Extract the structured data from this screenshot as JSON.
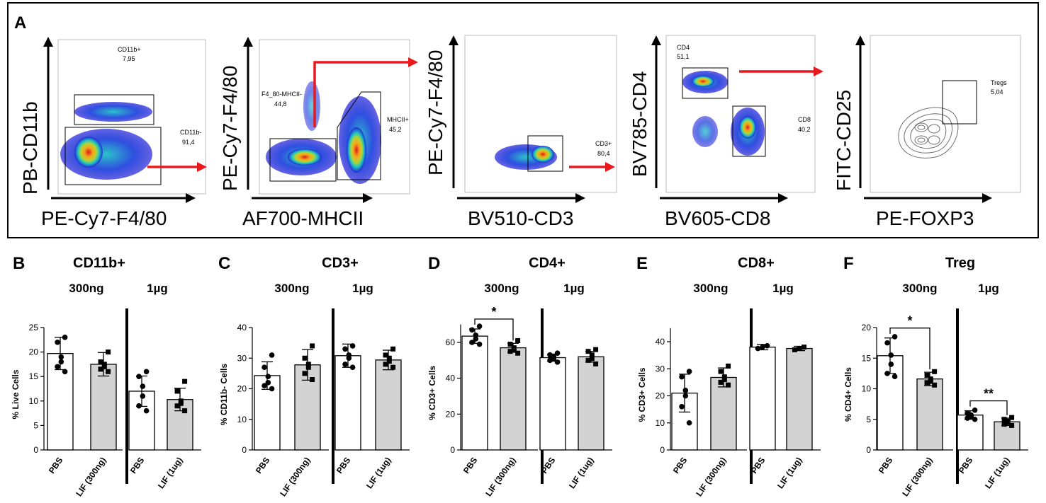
{
  "colors": {
    "arrow_red": "#e8191c",
    "bar_pbs": "#ffffff",
    "bar_lif": "#d3d3d3",
    "black": "#000000",
    "contour": "#6d6d6d"
  },
  "panel_a": {
    "label": "A",
    "plots": [
      {
        "y_label": "PB-CD11b",
        "x_label": "PE-Cy7-F4/80",
        "gates": [
          {
            "name": "CD11b+",
            "value": "7,95"
          },
          {
            "name": "CD11b-",
            "value": "91,4"
          }
        ]
      },
      {
        "y_label": "PE-Cy7-F4/80",
        "x_label": "AF700-MHCII",
        "gates": [
          {
            "name": "F4_80-MHCII-",
            "value": "44,8"
          },
          {
            "name": "MHCII+",
            "value": "45,2"
          }
        ]
      },
      {
        "y_label": "PE-Cy7-F4/80",
        "x_label": "BV510-CD3",
        "gates": [
          {
            "name": "CD3+",
            "value": "80,4"
          }
        ]
      },
      {
        "y_label": "BV785-CD4",
        "x_label": "BV605-CD8",
        "gates": [
          {
            "name": "CD4",
            "value": "51,1"
          },
          {
            "name": "CD8",
            "value": "40,2"
          }
        ]
      },
      {
        "y_label": "FITC-CD25",
        "x_label": "PE-FOXP3",
        "gates": [
          {
            "name": "Tregs",
            "value": "5,04"
          }
        ]
      }
    ]
  },
  "chart_data": [
    {
      "type": "bar",
      "panel": "B",
      "title": "CD11b+",
      "dose_labels": [
        "300ng",
        "1µg"
      ],
      "ylabel": "% Live Cells",
      "ylim": [
        0,
        25
      ],
      "yticks": [
        0,
        5,
        10,
        15,
        20,
        25
      ],
      "categories": [
        "PBS",
        "LIF (300ng)",
        "PBS",
        "LIF (1ug)"
      ],
      "values": [
        19.7,
        17.5,
        12.0,
        10.3
      ],
      "sd": [
        3.3,
        2.4,
        3.1,
        2.3
      ],
      "points": [
        [
          23,
          22,
          19,
          18,
          17,
          16
        ],
        [
          20,
          18,
          17.5,
          17,
          16.5,
          16
        ],
        [
          16,
          15,
          13,
          11,
          9,
          8
        ],
        [
          14,
          12,
          10,
          9.5,
          9,
          8
        ]
      ],
      "markers": [
        "circle",
        "square",
        "circle",
        "square"
      ],
      "significance": []
    },
    {
      "type": "bar",
      "panel": "C",
      "title": "CD3+",
      "dose_labels": [
        "300ng",
        "1µg"
      ],
      "ylabel": "% CD11b- Cells",
      "ylim": [
        0,
        40
      ],
      "yticks": [
        0,
        10,
        20,
        30,
        40
      ],
      "categories": [
        "PBS",
        "LIF (300ng)",
        "PBS",
        "LIF (1ug)"
      ],
      "values": [
        24.3,
        27.8,
        30.8,
        29.4
      ],
      "sd": [
        4.5,
        5.0,
        3.8,
        3.2
      ],
      "points": [
        [
          31,
          27,
          24,
          22,
          21,
          20
        ],
        [
          34,
          30,
          28,
          27,
          25,
          23
        ],
        [
          34,
          33,
          31,
          30,
          28,
          27
        ],
        [
          33,
          31,
          30,
          29,
          28,
          27
        ]
      ],
      "markers": [
        "circle",
        "square",
        "circle",
        "square"
      ],
      "significance": []
    },
    {
      "type": "bar",
      "panel": "D",
      "title": "CD4+",
      "dose_labels": [
        "300ng",
        "1µg"
      ],
      "ylabel": "% CD3+ Cells",
      "ylim": [
        0,
        70
      ],
      "yticks": [
        0,
        20,
        40,
        60
      ],
      "categories": [
        "PBS",
        "LIF (300ng)",
        "PBS",
        "LIF (1ug)"
      ],
      "values": [
        63.5,
        57.0,
        51.5,
        52.0
      ],
      "sd": [
        4.0,
        2.5,
        2.0,
        3.0
      ],
      "points": [
        [
          69,
          67,
          64,
          62,
          60,
          59
        ],
        [
          61,
          59,
          57,
          56,
          55,
          54
        ],
        [
          54,
          53,
          52,
          51,
          50,
          49
        ],
        [
          56,
          55,
          53,
          51,
          50,
          48
        ]
      ],
      "markers": [
        "circle",
        "square",
        "circle",
        "square"
      ],
      "significance": [
        {
          "from": 0,
          "to": 1,
          "label": "*"
        }
      ]
    },
    {
      "type": "bar",
      "panel": "E",
      "title": "CD8+",
      "dose_labels": [
        "300ng",
        "1µg"
      ],
      "ylabel": "% CD3+ Cells",
      "ylim": [
        0,
        45
      ],
      "yticks": [
        0,
        10,
        20,
        30,
        40
      ],
      "categories": [
        "PBS",
        "LIF (300ng)",
        "PBS",
        "LIF (1ug)"
      ],
      "values": [
        21.0,
        26.8,
        38.0,
        37.5
      ],
      "sd": [
        7.0,
        3.5,
        1.0,
        0.8
      ],
      "points": [
        [
          29,
          27,
          22,
          20,
          16,
          10
        ],
        [
          31,
          29,
          27,
          26,
          25,
          24
        ],
        [
          38.5,
          38,
          37.5
        ],
        [
          38,
          37.5,
          37
        ]
      ],
      "markers": [
        "circle",
        "square",
        "circle",
        "square"
      ],
      "significance": []
    },
    {
      "type": "bar",
      "panel": "F",
      "title": "Treg",
      "dose_labels": [
        "300ng",
        "1µg"
      ],
      "ylabel": "% CD4+ Cells",
      "ylim": [
        0,
        20
      ],
      "yticks": [
        0,
        5,
        10,
        15,
        20
      ],
      "categories": [
        "PBS",
        "LIF (300ng)",
        "PBS",
        "LIF (1ug)"
      ],
      "values": [
        15.4,
        11.6,
        5.7,
        4.6
      ],
      "sd": [
        2.9,
        1.1,
        0.7,
        0.6
      ],
      "points": [
        [
          18.5,
          17.5,
          15.5,
          14,
          12.5,
          12
        ],
        [
          12.8,
          12.2,
          11.6,
          11.2,
          11,
          10.6
        ],
        [
          6.5,
          6,
          5.7,
          5.5,
          5.2,
          5
        ],
        [
          5.3,
          5,
          4.7,
          4.5,
          4.2,
          4
        ]
      ],
      "markers": [
        "circle",
        "square",
        "circle",
        "square"
      ],
      "significance": [
        {
          "from": 0,
          "to": 1,
          "label": "*"
        },
        {
          "from": 2,
          "to": 3,
          "label": "**"
        }
      ]
    }
  ]
}
